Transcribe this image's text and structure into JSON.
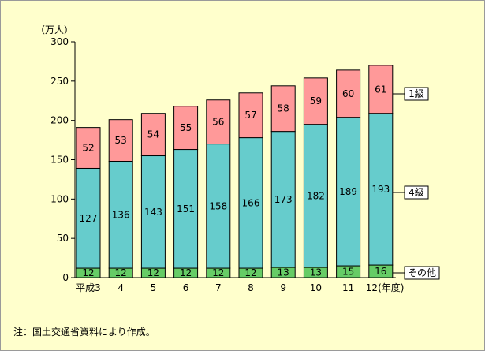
{
  "chart_data": {
    "type": "bar",
    "stacked": true,
    "unit_label": "（万人）",
    "ylim": [
      0,
      300
    ],
    "yticks": [
      0,
      50,
      100,
      150,
      200,
      250,
      300
    ],
    "categories": [
      "平成3",
      "4",
      "5",
      "6",
      "7",
      "8",
      "9",
      "10",
      "11",
      "12(年度)"
    ],
    "series": [
      {
        "name": "その他",
        "color": "#66cc66",
        "values": [
          12,
          12,
          12,
          12,
          12,
          12,
          13,
          13,
          15,
          16
        ]
      },
      {
        "name": "4級",
        "color": "#66cccc",
        "values": [
          127,
          136,
          143,
          151,
          158,
          166,
          173,
          182,
          189,
          193
        ]
      },
      {
        "name": "1級",
        "color": "#ff9999",
        "values": [
          52,
          53,
          54,
          55,
          56,
          57,
          58,
          59,
          60,
          61
        ]
      }
    ],
    "legend_placement": "right, beside top bar segments",
    "grid": false
  },
  "note": "注：国土交通省資料により作成。"
}
